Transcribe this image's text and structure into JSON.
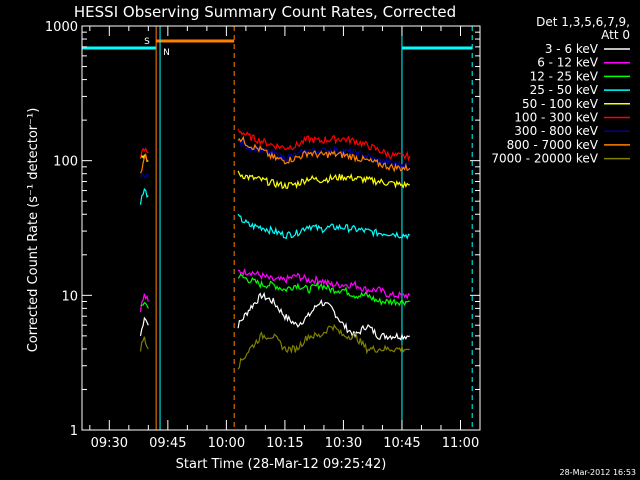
{
  "chart_data": {
    "type": "line",
    "title": "HESSI Observing Summary Count Rates, Corrected",
    "xlabel": "Start Time (28-Mar-12 09:25:42)",
    "ylabel": "Corrected Count Rate (s⁻¹ detector⁻¹)",
    "y_scale": "log",
    "ylim": [
      1,
      1000
    ],
    "xlim": [
      "09:23",
      "11:05"
    ],
    "x_ticks": [
      "09:30",
      "09:45",
      "10:00",
      "10:15",
      "10:30",
      "10:45",
      "11:00"
    ],
    "y_ticks": [
      "1",
      "10",
      "100",
      "1000"
    ],
    "legend_header": [
      "Det 1,3,5,6,7,9,",
      "Att 0"
    ],
    "timestamp": "28-Mar-2012 16:53",
    "flag_labels": {
      "saa": "S",
      "night": "N"
    },
    "flag_intervals": {
      "saa": {
        "start": "09:42",
        "end": "10:02",
        "color": "#ff8000"
      },
      "night_before": {
        "start": "09:23",
        "end": "09:42",
        "color": "#00ffff"
      },
      "night_after": {
        "start": "10:45",
        "end": "11:03",
        "color": "#00ffff"
      }
    },
    "vertical_markers": [
      {
        "time": "09:42",
        "color": "#ff8000",
        "style": "solid"
      },
      {
        "time": "09:43",
        "color": "#00ffff",
        "style": "solid"
      },
      {
        "time": "10:02",
        "color": "#ff8000",
        "style": "dashed"
      },
      {
        "time": "10:45",
        "color": "#00ffff",
        "style": "solid"
      },
      {
        "time": "11:03",
        "color": "#00ffff",
        "style": "dashed"
      }
    ],
    "segments": [
      {
        "start": "09:38",
        "end": "09:40"
      },
      {
        "start": "10:03",
        "end": "10:47"
      }
    ],
    "times": [
      "09:38",
      "09:39",
      "09:40",
      "10:03",
      "10:06",
      "10:09",
      "10:12",
      "10:15",
      "10:18",
      "10:21",
      "10:24",
      "10:27",
      "10:30",
      "10:33",
      "10:36",
      "10:39",
      "10:42",
      "10:45",
      "10:47"
    ],
    "series": [
      {
        "name": "3 - 6 keV",
        "color": "#ffffff",
        "values": [
          5,
          7,
          6,
          6,
          8,
          10,
          9,
          7,
          6,
          7,
          9,
          8,
          6,
          5,
          6,
          5,
          5,
          5,
          5
        ]
      },
      {
        "name": "6 - 12 keV",
        "color": "#ff00ff",
        "values": [
          8,
          10,
          9,
          15,
          15,
          14,
          13,
          13,
          14,
          13,
          13,
          12,
          12,
          12,
          11,
          11,
          10,
          10,
          10
        ]
      },
      {
        "name": "12 - 25 keV",
        "color": "#00ff00",
        "values": [
          8,
          9,
          8,
          14,
          13,
          12,
          12,
          11,
          12,
          11,
          12,
          11,
          11,
          10,
          10,
          9,
          9,
          9,
          9
        ]
      },
      {
        "name": "25 - 50 keV",
        "color": "#00ffff",
        "values": [
          50,
          60,
          55,
          38,
          33,
          32,
          30,
          28,
          29,
          33,
          31,
          32,
          32,
          31,
          30,
          29,
          29,
          28,
          28
        ]
      },
      {
        "name": "50 - 100 keV",
        "color": "#ffff00",
        "values": [
          100,
          110,
          100,
          80,
          75,
          72,
          68,
          65,
          67,
          74,
          72,
          74,
          76,
          74,
          72,
          70,
          68,
          66,
          66
        ]
      },
      {
        "name": "100 - 300 keV",
        "color": "#ff0000",
        "values": [
          110,
          120,
          115,
          170,
          150,
          140,
          130,
          125,
          130,
          145,
          140,
          145,
          145,
          140,
          130,
          120,
          110,
          108,
          108
        ]
      },
      {
        "name": "300 - 800 keV",
        "color": "#00009f",
        "values": [
          75,
          80,
          78,
          140,
          125,
          120,
          112,
          106,
          110,
          120,
          118,
          120,
          118,
          115,
          108,
          100,
          96,
          93,
          93
        ]
      },
      {
        "name": "800 - 7000 keV",
        "color": "#ff8000",
        "values": [
          80,
          110,
          100,
          150,
          130,
          120,
          105,
          100,
          105,
          115,
          110,
          112,
          110,
          106,
          100,
          95,
          90,
          88,
          88
        ]
      },
      {
        "name": "7000 - 20000 keV",
        "color": "#7f7f00",
        "values": [
          4,
          5,
          4,
          3,
          4,
          5,
          5,
          4,
          4,
          5,
          5,
          6,
          5,
          5,
          4,
          4,
          4,
          4,
          4
        ]
      }
    ]
  }
}
